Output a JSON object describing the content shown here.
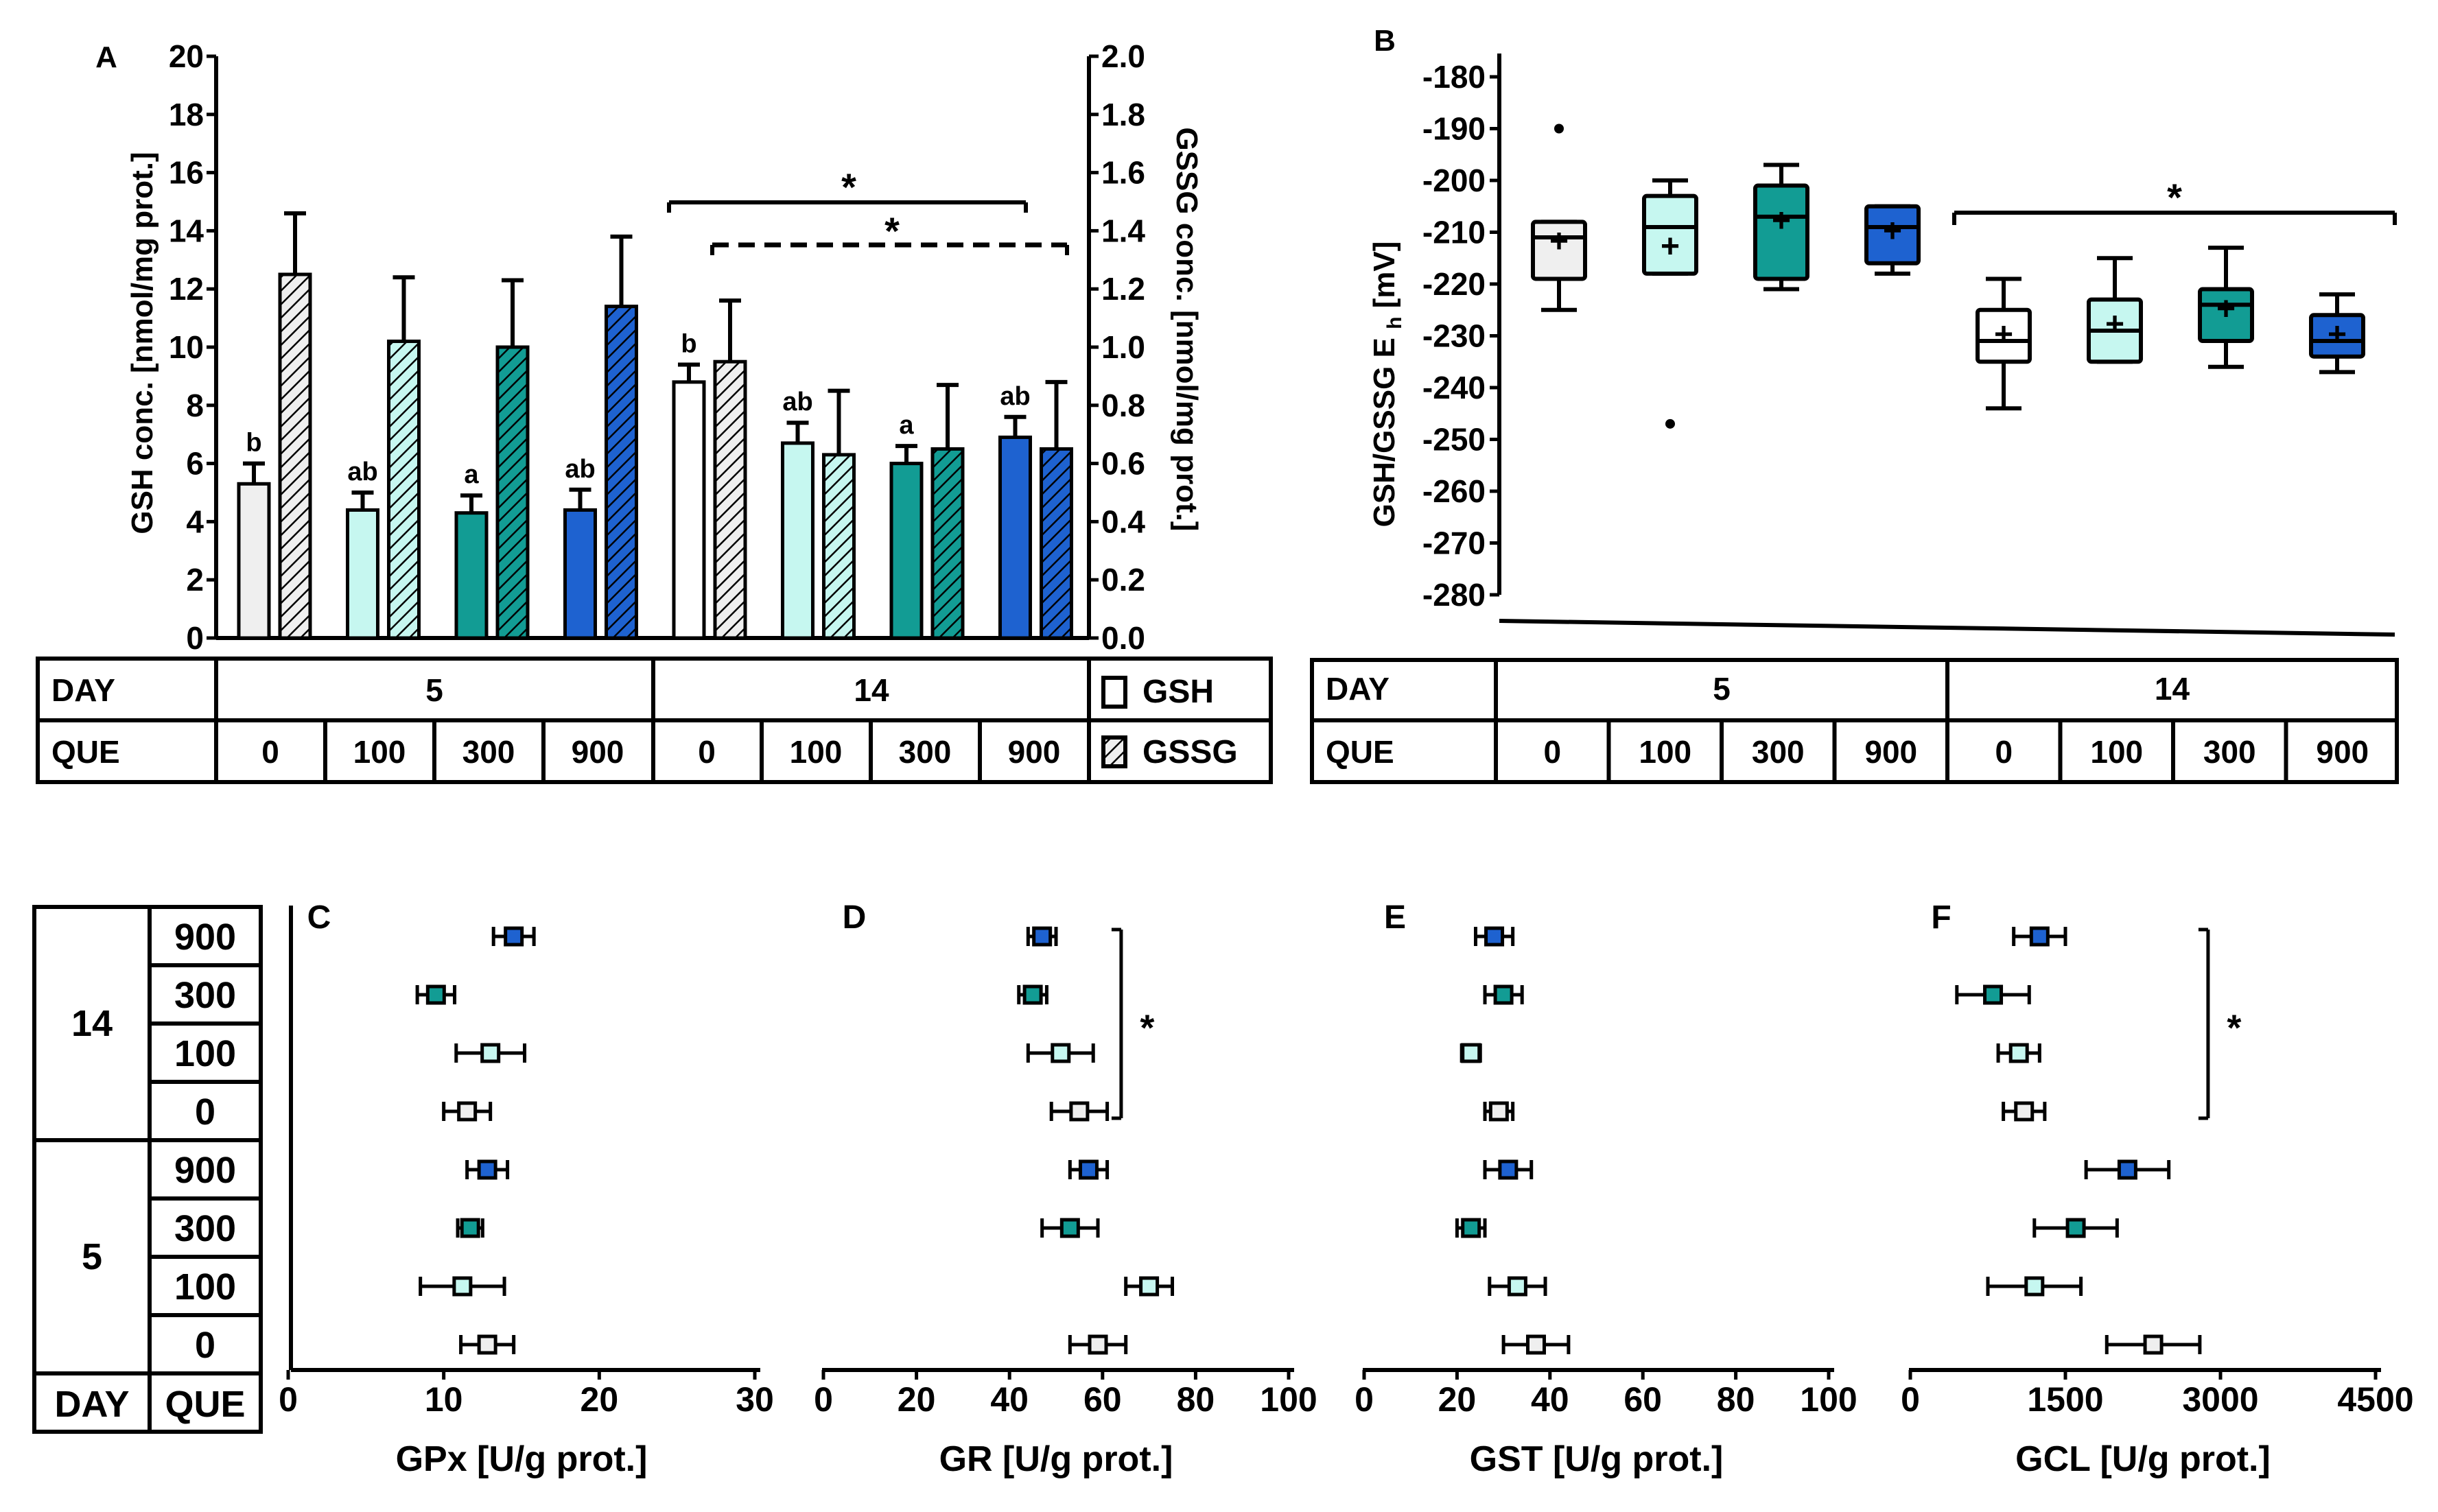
{
  "colors": {
    "que0": "#efefef",
    "que100": "#c6f7f0",
    "que300": "#129c94",
    "que900": "#1e62d0",
    "day14_0": "#ffffff",
    "ink": "#000000"
  },
  "chart_data": [
    {
      "id": "A",
      "type": "bar",
      "panel_label": "A",
      "ylabel_left": "GSH conc. [nmol/mg prot.]",
      "ylabel_right": "GSSG conc. [nmol/mg prot.]",
      "ylim_left": [
        0,
        20
      ],
      "ylim_right": [
        0,
        2.0
      ],
      "yticks_left": [
        "0",
        "2",
        "4",
        "6",
        "8",
        "10",
        "12",
        "14",
        "16",
        "18",
        "20"
      ],
      "yticks_right": [
        "0.0",
        "0.2",
        "0.4",
        "0.6",
        "0.8",
        "1.0",
        "1.2",
        "1.4",
        "1.6",
        "1.8",
        "2.0"
      ],
      "groups": [
        {
          "day": "5",
          "que": "0",
          "gsh": 5.3,
          "gsh_err": 0.7,
          "gssg": 1.25,
          "gssg_err": 0.21,
          "letter": "b"
        },
        {
          "day": "5",
          "que": "100",
          "gsh": 4.4,
          "gsh_err": 0.6,
          "gssg": 1.02,
          "gssg_err": 0.22,
          "letter": "ab"
        },
        {
          "day": "5",
          "que": "300",
          "gsh": 4.3,
          "gsh_err": 0.6,
          "gssg": 1.0,
          "gssg_err": 0.23,
          "letter": "a"
        },
        {
          "day": "5",
          "que": "900",
          "gsh": 4.4,
          "gsh_err": 0.7,
          "gssg": 1.14,
          "gssg_err": 0.24,
          "letter": "ab"
        },
        {
          "day": "14",
          "que": "0",
          "gsh": 8.8,
          "gsh_err": 0.6,
          "gssg": 0.95,
          "gssg_err": 0.21,
          "letter": "b"
        },
        {
          "day": "14",
          "que": "100",
          "gsh": 6.7,
          "gsh_err": 0.7,
          "gssg": 0.63,
          "gssg_err": 0.22,
          "letter": "ab"
        },
        {
          "day": "14",
          "que": "300",
          "gsh": 6.0,
          "gsh_err": 0.6,
          "gssg": 0.65,
          "gssg_err": 0.22,
          "letter": "a"
        },
        {
          "day": "14",
          "que": "900",
          "gsh": 6.9,
          "gsh_err": 0.7,
          "gssg": 0.65,
          "gssg_err": 0.23,
          "letter": "ab"
        }
      ],
      "significance": [
        {
          "label": "*",
          "style": "solid",
          "axis": "GSH",
          "from_group": 4,
          "to_group": 7
        },
        {
          "label": "*",
          "style": "dashed",
          "axis": "GSSG",
          "from_group": 4,
          "to_group": 7
        }
      ],
      "table": {
        "day_label": "DAY",
        "que_label": "QUE",
        "days": [
          "5",
          "14"
        ],
        "que": [
          "0",
          "100",
          "300",
          "900",
          "0",
          "100",
          "300",
          "900"
        ],
        "legend": [
          {
            "key": "gsh",
            "label": "GSH"
          },
          {
            "key": "gssg",
            "label": "GSSG"
          }
        ]
      }
    },
    {
      "id": "B",
      "type": "box",
      "panel_label": "B",
      "ylabel": "GSH/GSSG E",
      "ylabel_sub": "h",
      "ylabel_unit": "[mV]",
      "ylim": [
        -280,
        -180
      ],
      "yticks": [
        "-180",
        "-190",
        "-200",
        "-210",
        "-220",
        "-230",
        "-240",
        "-250",
        "-260",
        "-270",
        "-280"
      ],
      "boxes": [
        {
          "day": "5",
          "que": "0",
          "min": -225,
          "q1": -219,
          "median": -211,
          "q3": -208,
          "max": -208,
          "mean": -212,
          "outliers": [
            -190
          ]
        },
        {
          "day": "5",
          "que": "100",
          "min": -218,
          "q1": -218,
          "median": -209,
          "q3": -203,
          "max": -200,
          "mean": -213,
          "outliers": [
            -247
          ]
        },
        {
          "day": "5",
          "que": "300",
          "min": -221,
          "q1": -219,
          "median": -207,
          "q3": -201,
          "max": -197,
          "mean": -208,
          "outliers": []
        },
        {
          "day": "5",
          "que": "900",
          "min": -218,
          "q1": -216,
          "median": -209,
          "q3": -205,
          "max": -205,
          "mean": -210,
          "outliers": []
        },
        {
          "day": "14",
          "que": "0",
          "min": -244,
          "q1": -235,
          "median": -231,
          "q3": -225,
          "max": -219,
          "mean": -230,
          "outliers": []
        },
        {
          "day": "14",
          "que": "100",
          "min": -235,
          "q1": -235,
          "median": -229,
          "q3": -223,
          "max": -215,
          "mean": -228,
          "outliers": []
        },
        {
          "day": "14",
          "que": "300",
          "min": -236,
          "q1": -231,
          "median": -224,
          "q3": -221,
          "max": -213,
          "mean": -225,
          "outliers": []
        },
        {
          "day": "14",
          "que": "900",
          "min": -237,
          "q1": -234,
          "median": -231,
          "q3": -226,
          "max": -222,
          "mean": -230,
          "outliers": []
        }
      ],
      "significance": [
        {
          "label": "*",
          "from_group": 4,
          "to_group": 7
        }
      ],
      "table": {
        "day_label": "DAY",
        "que_label": "QUE",
        "days": [
          "5",
          "14"
        ],
        "que": [
          "0",
          "100",
          "300",
          "900",
          "0",
          "100",
          "300",
          "900"
        ]
      }
    },
    {
      "id": "C",
      "type": "horizontal-errorbar",
      "panel_label": "C",
      "xlabel": "GPx [U/g prot.]",
      "xlim": [
        0,
        30
      ],
      "xticks": [
        "0",
        "10",
        "20",
        "30"
      ],
      "points": [
        {
          "day": "14",
          "que": "900",
          "mean": 14.5,
          "err": 1.3
        },
        {
          "day": "14",
          "que": "300",
          "mean": 9.5,
          "err": 1.2
        },
        {
          "day": "14",
          "que": "100",
          "mean": 13.0,
          "err": 2.2
        },
        {
          "day": "14",
          "que": "0",
          "mean": 11.5,
          "err": 1.5
        },
        {
          "day": "5",
          "que": "900",
          "mean": 12.8,
          "err": 1.3
        },
        {
          "day": "5",
          "que": "300",
          "mean": 11.7,
          "err": 0.8
        },
        {
          "day": "5",
          "que": "100",
          "mean": 11.2,
          "err": 2.7
        },
        {
          "day": "5",
          "que": "0",
          "mean": 12.8,
          "err": 1.7
        }
      ],
      "significance": []
    },
    {
      "id": "D",
      "type": "horizontal-errorbar",
      "panel_label": "D",
      "xlabel": "GR [U/g prot.]",
      "xlim": [
        0,
        100
      ],
      "xticks": [
        "0",
        "20",
        "40",
        "60",
        "80",
        "100"
      ],
      "points": [
        {
          "day": "14",
          "que": "900",
          "mean": 47,
          "err": 3
        },
        {
          "day": "14",
          "que": "300",
          "mean": 45,
          "err": 3
        },
        {
          "day": "14",
          "que": "100",
          "mean": 51,
          "err": 7
        },
        {
          "day": "14",
          "que": "0",
          "mean": 55,
          "err": 6
        },
        {
          "day": "5",
          "que": "900",
          "mean": 57,
          "err": 4
        },
        {
          "day": "5",
          "que": "300",
          "mean": 53,
          "err": 6
        },
        {
          "day": "5",
          "que": "100",
          "mean": 70,
          "err": 5
        },
        {
          "day": "5",
          "que": "0",
          "mean": 59,
          "err": 6
        }
      ],
      "significance": [
        {
          "label": "*",
          "from_row": 0,
          "to_row": 3
        }
      ]
    },
    {
      "id": "E",
      "type": "horizontal-errorbar",
      "panel_label": "E",
      "xlabel": "GST [U/g prot.]",
      "xlim": [
        0,
        100
      ],
      "xticks": [
        "0",
        "20",
        "40",
        "60",
        "80",
        "100"
      ],
      "points": [
        {
          "day": "14",
          "que": "900",
          "mean": 28,
          "err": 4
        },
        {
          "day": "14",
          "que": "300",
          "mean": 30,
          "err": 4
        },
        {
          "day": "14",
          "que": "100",
          "mean": 23,
          "err": 2
        },
        {
          "day": "14",
          "que": "0",
          "mean": 29,
          "err": 3
        },
        {
          "day": "5",
          "que": "900",
          "mean": 31,
          "err": 5
        },
        {
          "day": "5",
          "que": "300",
          "mean": 23,
          "err": 3
        },
        {
          "day": "5",
          "que": "100",
          "mean": 33,
          "err": 6
        },
        {
          "day": "5",
          "que": "0",
          "mean": 37,
          "err": 7
        }
      ],
      "significance": []
    },
    {
      "id": "F",
      "type": "horizontal-errorbar",
      "panel_label": "F",
      "xlabel": "GCL [U/g prot.]",
      "xlim": [
        0,
        4500
      ],
      "xticks": [
        "0",
        "1500",
        "3000",
        "4500"
      ],
      "points": [
        {
          "day": "14",
          "que": "900",
          "mean": 1250,
          "err": 250
        },
        {
          "day": "14",
          "que": "300",
          "mean": 800,
          "err": 350
        },
        {
          "day": "14",
          "que": "100",
          "mean": 1050,
          "err": 200
        },
        {
          "day": "14",
          "que": "0",
          "mean": 1100,
          "err": 200
        },
        {
          "day": "5",
          "que": "900",
          "mean": 2100,
          "err": 400
        },
        {
          "day": "5",
          "que": "300",
          "mean": 1600,
          "err": 400
        },
        {
          "day": "5",
          "que": "100",
          "mean": 1200,
          "err": 450
        },
        {
          "day": "5",
          "que": "0",
          "mean": 2350,
          "err": 450
        }
      ],
      "significance": [
        {
          "label": "*",
          "from_row": 0,
          "to_row": 3
        }
      ]
    }
  ],
  "row_table": {
    "day_label": "DAY",
    "que_label": "QUE",
    "groups": [
      {
        "day": "14",
        "que": [
          "900",
          "300",
          "100",
          "0"
        ]
      },
      {
        "day": "5",
        "que": [
          "900",
          "300",
          "100",
          "0"
        ]
      }
    ]
  }
}
